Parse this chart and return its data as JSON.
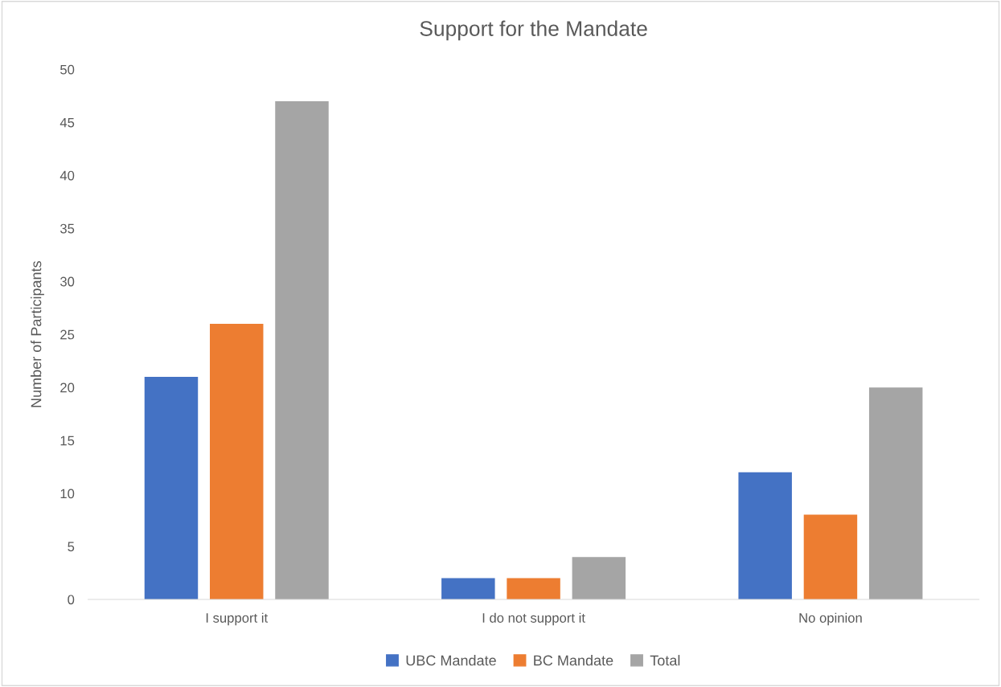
{
  "chart_data": {
    "type": "bar",
    "title": "Support for the Mandate",
    "ylabel": "Number of Participants",
    "categories": [
      "I support it",
      "I do not support it",
      "No opinion"
    ],
    "series": [
      {
        "name": "UBC Mandate",
        "color": "#4472c4",
        "values": [
          21,
          2,
          12
        ]
      },
      {
        "name": "BC Mandate",
        "color": "#ed7d31",
        "values": [
          26,
          2,
          8
        ]
      },
      {
        "name": "Total",
        "color": "#a5a5a5",
        "values": [
          47,
          4,
          20
        ]
      }
    ],
    "ylim": [
      0,
      50
    ],
    "yticks": [
      0,
      5,
      10,
      15,
      20,
      25,
      30,
      35,
      40,
      45,
      50
    ],
    "grid": false,
    "legend": "bottom"
  }
}
